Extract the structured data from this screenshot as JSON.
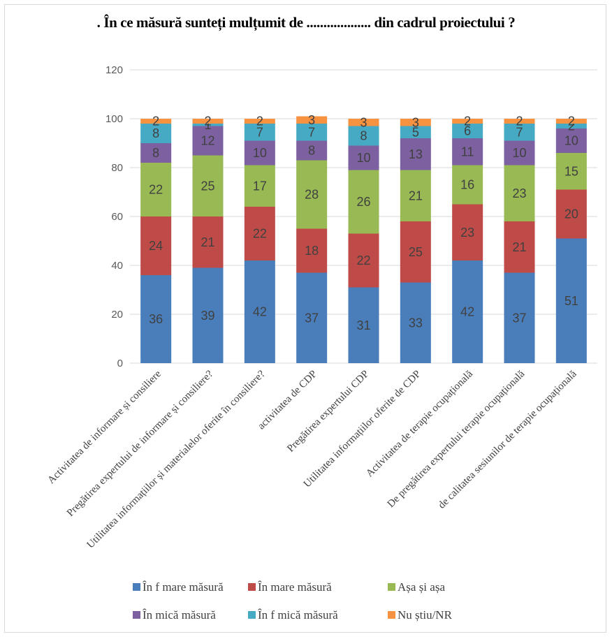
{
  "chart_data": {
    "type": "bar",
    "stacked": true,
    "title": ". În ce măsură sunteți mulțumit de ................... din cadrul proiectului ?",
    "ylim": [
      0,
      120
    ],
    "yticks": [
      0,
      20,
      40,
      60,
      80,
      100,
      120
    ],
    "grid": true,
    "legend_position": "bottom",
    "categories": [
      "Activitatea de informare și consiliere",
      "Pregătirea expertului de informare și consiliere?",
      "Utilitatea informațiilor și materialelor oferite în consiliere?",
      "activitatea de CDP",
      "Pregătirea expertului CDP",
      "Utilitatea informațiilor oferite de CDP",
      "Activitatea de terapie ocupațională",
      "De pregătirea expertului terapie ocupațională",
      "de calitatea sesiunilor de terapie ocupațională"
    ],
    "series": [
      {
        "name": "În f mare măsură",
        "color": "#4a7ebb",
        "values": [
          36,
          39,
          42,
          37,
          31,
          33,
          42,
          37,
          51
        ]
      },
      {
        "name": "În mare măsură",
        "color": "#be4b48",
        "values": [
          24,
          21,
          22,
          18,
          22,
          25,
          23,
          21,
          20
        ]
      },
      {
        "name": "Așa și așa",
        "color": "#98b954",
        "values": [
          22,
          25,
          17,
          28,
          26,
          21,
          16,
          23,
          15
        ]
      },
      {
        "name": "În mică măsură",
        "color": "#7d60a0",
        "values": [
          8,
          12,
          10,
          8,
          10,
          13,
          11,
          10,
          10
        ]
      },
      {
        "name": "În f mică măsură",
        "color": "#46aac5",
        "values": [
          8,
          1,
          7,
          7,
          8,
          5,
          6,
          7,
          2
        ]
      },
      {
        "name": "Nu știu/NR",
        "color": "#f69240",
        "values": [
          2,
          2,
          2,
          3,
          3,
          3,
          2,
          2,
          2
        ]
      }
    ]
  }
}
